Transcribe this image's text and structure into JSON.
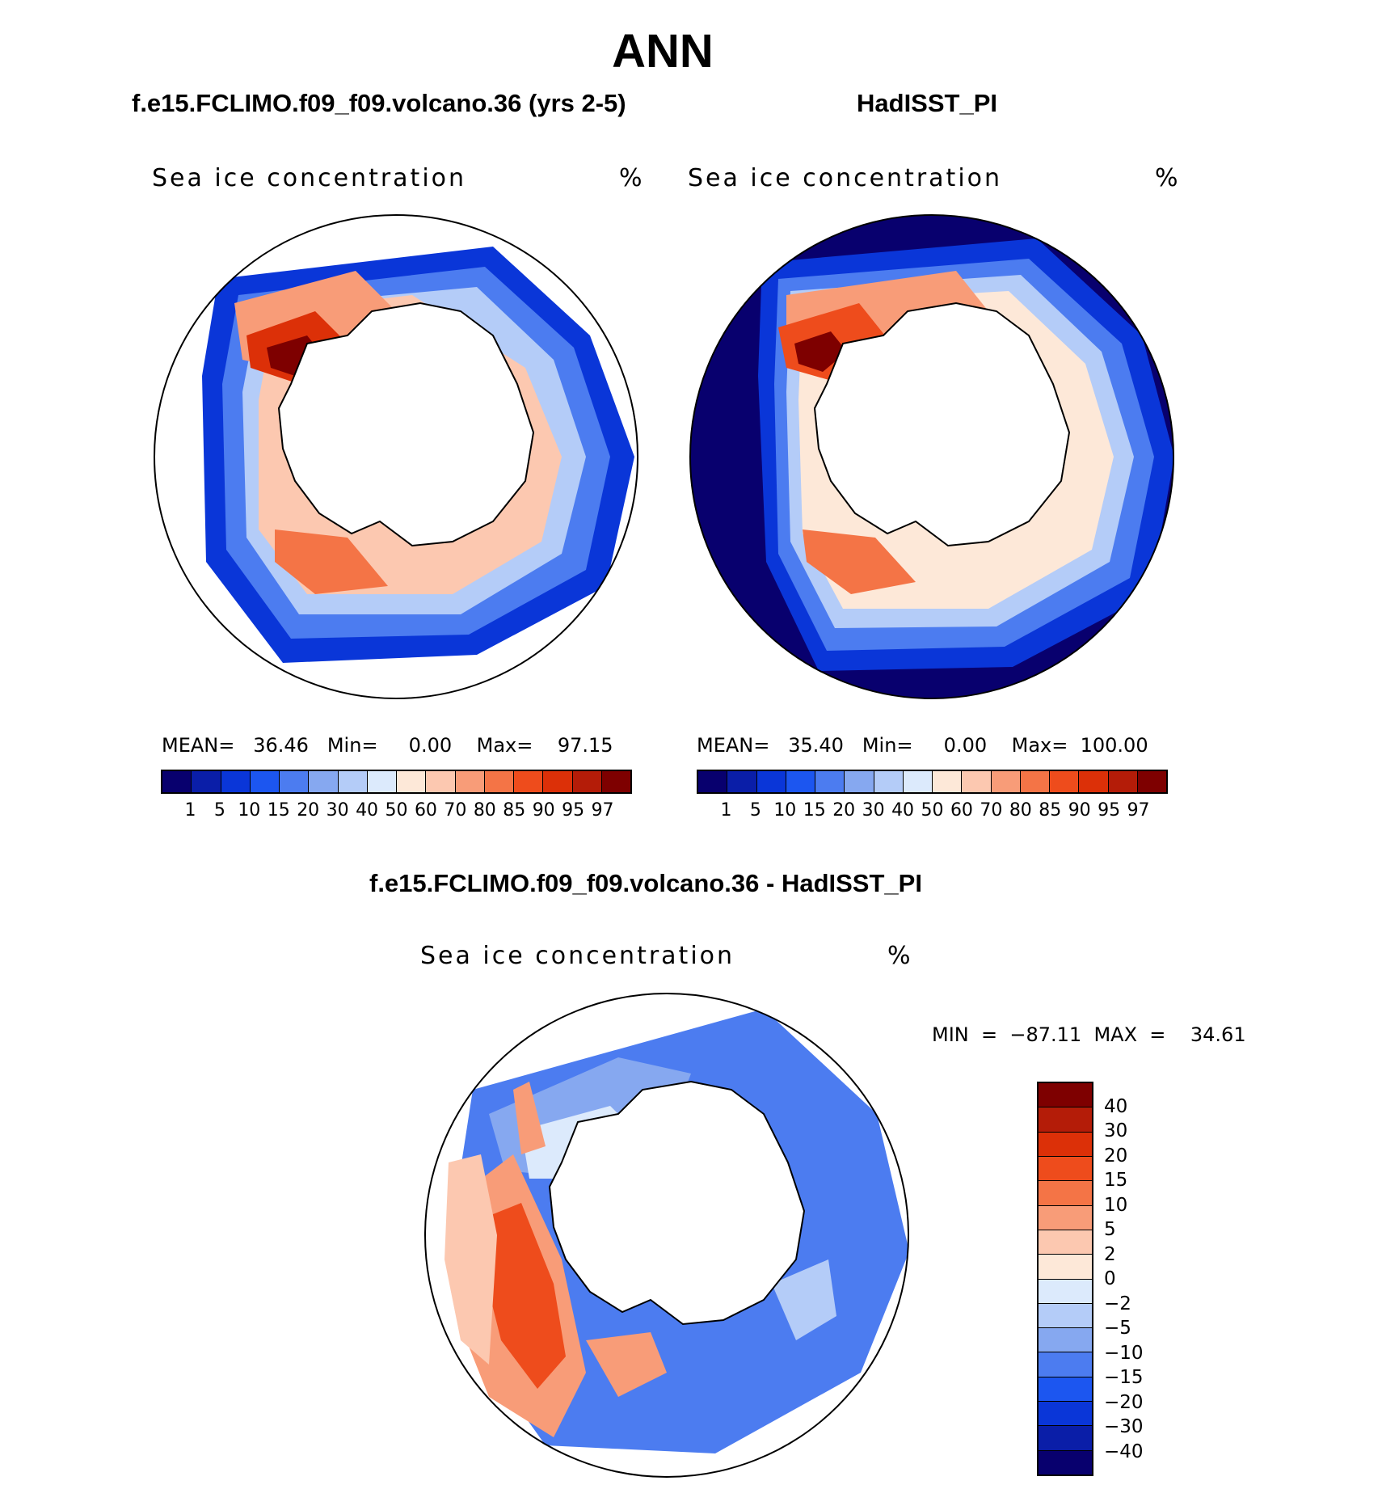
{
  "title": "ANN",
  "panels": {
    "left": {
      "title": "f.e15.FCLIMO.f09_f09.volcano.36 (yrs 2-5)",
      "var_label": "Sea ice concentration",
      "unit": "%",
      "stats": "MEAN=   36.46   Min=     0.00    Max=    97.15"
    },
    "right": {
      "title": "HadISST_PI",
      "var_label": "Sea ice concentration",
      "unit": "%",
      "stats": "MEAN=   35.40   Min=     0.00    Max=  100.00"
    },
    "diff": {
      "title": "f.e15.FCLIMO.f09_f09.volcano.36 - HadISST_PI",
      "var_label": "Sea ice concentration",
      "unit": "%",
      "stats": "MIN  =  −87.11  MAX  =    34.61"
    }
  },
  "colorbar_abs": {
    "levels": [
      "1",
      "5",
      "10",
      "15",
      "20",
      "30",
      "40",
      "50",
      "60",
      "70",
      "80",
      "85",
      "90",
      "95",
      "97"
    ],
    "colors": [
      "#08006e",
      "#0a1ea8",
      "#0a36d8",
      "#1c56f0",
      "#4c7cf0",
      "#86a8f0",
      "#b4ccf8",
      "#dceafc",
      "#fde8d8",
      "#fcc8b0",
      "#f89c78",
      "#f47446",
      "#ee4c1c",
      "#dc3008",
      "#b41c08",
      "#7e0000"
    ]
  },
  "colorbar_diff": {
    "levels": [
      "40",
      "30",
      "20",
      "15",
      "10",
      "5",
      "2",
      "0",
      "−2",
      "−5",
      "−10",
      "−15",
      "−20",
      "−30",
      "−40"
    ],
    "colors": [
      "#7e0000",
      "#b41c08",
      "#dc3008",
      "#ee4c1c",
      "#f47446",
      "#f89c78",
      "#fcc8b0",
      "#fde8d8",
      "#dceafc",
      "#b4ccf8",
      "#86a8f0",
      "#4c7cf0",
      "#1c56f0",
      "#0a36d8",
      "#0a1ea8",
      "#08006e"
    ]
  },
  "map_colors": {
    "deep_blue": "#08006e",
    "blue": "#0a36d8",
    "mid_blue": "#4c7cf0",
    "light_blue": "#b4ccf8",
    "pale_blue": "#dceafc",
    "pale_orange": "#fde8d8",
    "light_orange": "#fcc8b0",
    "orange": "#f89c78",
    "red_orange": "#ee4c1c",
    "dark_red": "#b41c08",
    "land": "#ffffff"
  }
}
